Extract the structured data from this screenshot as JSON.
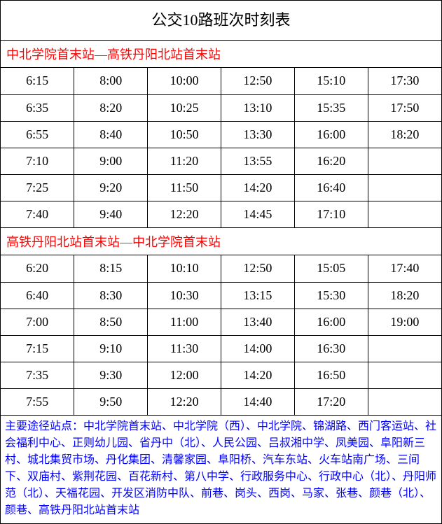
{
  "title": "公交10路班次时刻表",
  "title_fontsize": 22,
  "direction_color": "#ff0000",
  "direction_fontsize": 18,
  "cell_fontsize": 18,
  "stops_color": "#0000ff",
  "stops_fontsize": 16,
  "border_color": "#000000",
  "background_color": "#ffffff",
  "direction1": {
    "label": "中北学院首末站—高铁丹阳北站首末站",
    "columns": 6,
    "rows": [
      [
        "6:15",
        "8:00",
        "10:00",
        "12:50",
        "15:10",
        "17:30"
      ],
      [
        "6:35",
        "8:20",
        "10:25",
        "13:10",
        "15:35",
        "17:50"
      ],
      [
        "6:55",
        "8:40",
        "10:50",
        "13:30",
        "16:00",
        "18:20"
      ],
      [
        "7:10",
        "9:00",
        "11:20",
        "13:55",
        "16:20",
        ""
      ],
      [
        "7:25",
        "9:20",
        "11:50",
        "14:20",
        "16:40",
        ""
      ],
      [
        "7:40",
        "9:40",
        "12:20",
        "14:45",
        "17:10",
        ""
      ]
    ]
  },
  "direction2": {
    "label": "高铁丹阳北站首末站—中北学院首末站",
    "columns": 6,
    "rows": [
      [
        "6:20",
        "8:15",
        "10:10",
        "12:50",
        "15:05",
        "17:40"
      ],
      [
        "6:40",
        "8:30",
        "10:30",
        "13:15",
        "15:30",
        "18:20"
      ],
      [
        "7:00",
        "8:50",
        "11:00",
        "13:40",
        "16:00",
        "19:00"
      ],
      [
        "7:15",
        "9:10",
        "11:30",
        "14:00",
        "16:30",
        ""
      ],
      [
        "7:35",
        "9:30",
        "12:00",
        "14:20",
        "16:50",
        ""
      ],
      [
        "7:55",
        "9:50",
        "12:20",
        "14:40",
        "17:20",
        ""
      ]
    ]
  },
  "stops_text": "主要途径站点：中北学院首末站、中北学院（西）、中北学院、锦湖路、西门客运站、社会福利中心、正则幼儿园、省丹中（北）、人民公园、吕叔湘中学、凤美园、阜阳新三村、城北集贸市场、丹化集团、清馨家园、阜阳桥、汽车东站、火车站南广场、三间下、双庙村、紫荆花园、百花新村、第八中学、行政服务中心、行政中心（北）、丹阳师范（北）、天福花园、开发区消防中队、前巷、岗头、西岗、马家、张巷、颜巷（北）、颜巷、高铁丹阳北站首末站"
}
